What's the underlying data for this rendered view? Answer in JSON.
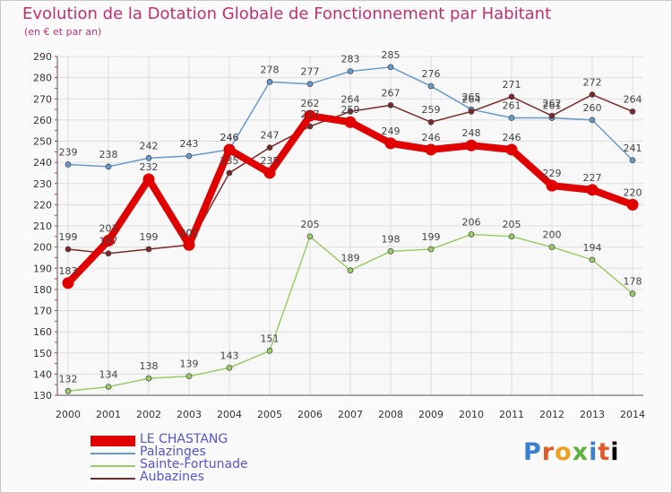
{
  "chart_data": {
    "type": "line",
    "title": "Evolution de la Dotation Globale de Fonctionnement par Habitant",
    "subtitle": "(en € et par an)",
    "xlabel": "",
    "ylabel": "",
    "ylim": [
      130,
      290
    ],
    "ytick_step": 10,
    "grid": true,
    "legend_position": "bottom-left",
    "x": [
      "2000",
      "2001",
      "2002",
      "2003",
      "2004",
      "2005",
      "2006",
      "2007",
      "2008",
      "2009",
      "2010",
      "2011",
      "2012",
      "2013",
      "2014"
    ],
    "series": [
      {
        "name": "LE CHASTANG",
        "values": [
          183,
          203,
          232,
          201,
          246,
          235,
          262,
          259,
          249,
          246,
          248,
          246,
          229,
          227,
          220
        ],
        "color": "#e00000",
        "bold": true
      },
      {
        "name": "Palazinges",
        "values": [
          239,
          238,
          242,
          243,
          246,
          278,
          277,
          283,
          285,
          276,
          265,
          261,
          261,
          260,
          241
        ],
        "color": "#6699cc",
        "bold": false
      },
      {
        "name": "Sainte-Fortunade",
        "values": [
          132,
          134,
          138,
          139,
          143,
          151,
          205,
          189,
          198,
          199,
          206,
          205,
          200,
          194,
          178
        ],
        "color": "#99cc66",
        "bold": false
      },
      {
        "name": "Aubazines",
        "values": [
          199,
          197,
          199,
          201,
          235,
          247,
          257,
          264,
          267,
          259,
          264,
          271,
          262,
          272,
          264
        ],
        "color": "#7a2a2a",
        "bold": false
      }
    ]
  },
  "logo": {
    "letters": [
      "P",
      "r",
      "o",
      "x",
      "i",
      "t",
      "i"
    ]
  }
}
